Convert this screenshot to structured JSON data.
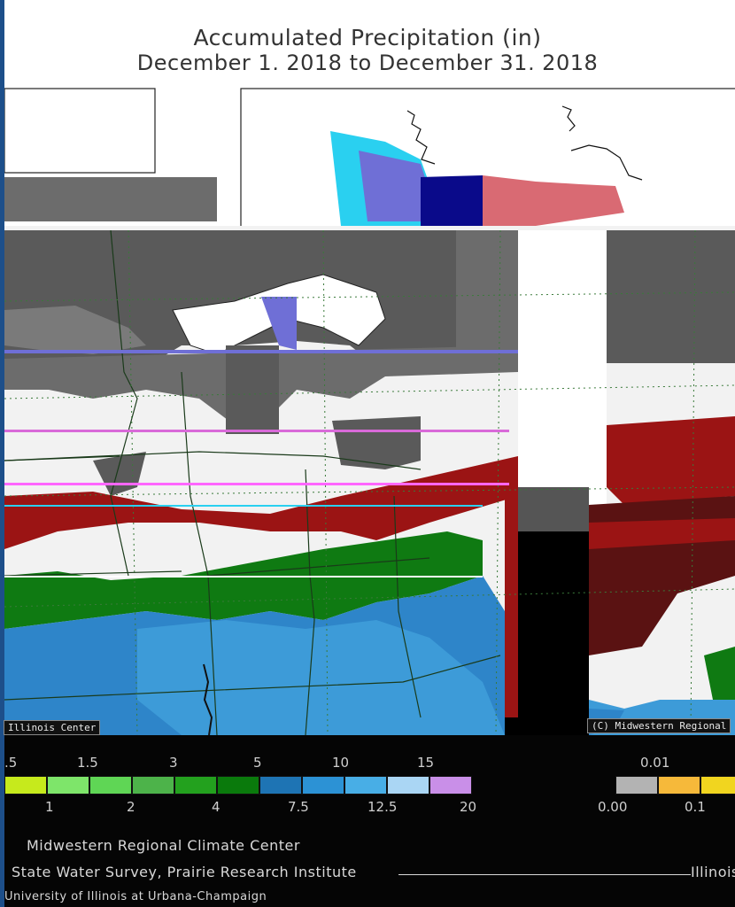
{
  "title": "Accumulated Precipitation (in)",
  "subtitle": "December 1, 2018 to December 31, 2018",
  "legend_left": {
    "top_ticks": [
      ".5",
      "1.5",
      "3",
      "5",
      "10",
      "15"
    ],
    "bottom_ticks": [
      "1",
      "2",
      "4",
      "7.5",
      "12.5",
      "20"
    ],
    "colors": [
      "#c6ea1c",
      "#7ee56a",
      "#5fd655",
      "#4db34a",
      "#23a11e",
      "#0a7a0c",
      "#1e74b4",
      "#2c92d5",
      "#48aee6",
      "#aad6f4",
      "#c98fe8"
    ]
  },
  "legend_right": {
    "top_ticks": [
      "0.01"
    ],
    "bottom_ticks": [
      "0.00",
      "0.1"
    ],
    "colors": [
      "#b3b3b3",
      "#f6b93a",
      "#f1d51f"
    ]
  },
  "credits": {
    "line1": "Midwestern Regional Climate Center",
    "line2": "State Water Survey, Prairie Research Institute",
    "line2_right": "Illinois",
    "line3": "University of Illinois at Urbana-Champaign"
  },
  "tags": {
    "left": "Illinois Center",
    "right": "(C) Midwestern Regional"
  },
  "map_colors": {
    "gray_dark": "#5a5a5a",
    "gray_mid": "#6c6c6c",
    "white_band": "#f2f2f2",
    "red": "#9b1414",
    "dark_red": "#5a1212",
    "green": "#0f7a12",
    "blue": "#2e85c9",
    "light_blue": "#3d9bd8",
    "purple": "#6f6fd6",
    "navy": "#0a0a8a",
    "pink": "#d96a73",
    "cyan": "#2ad0f0"
  }
}
